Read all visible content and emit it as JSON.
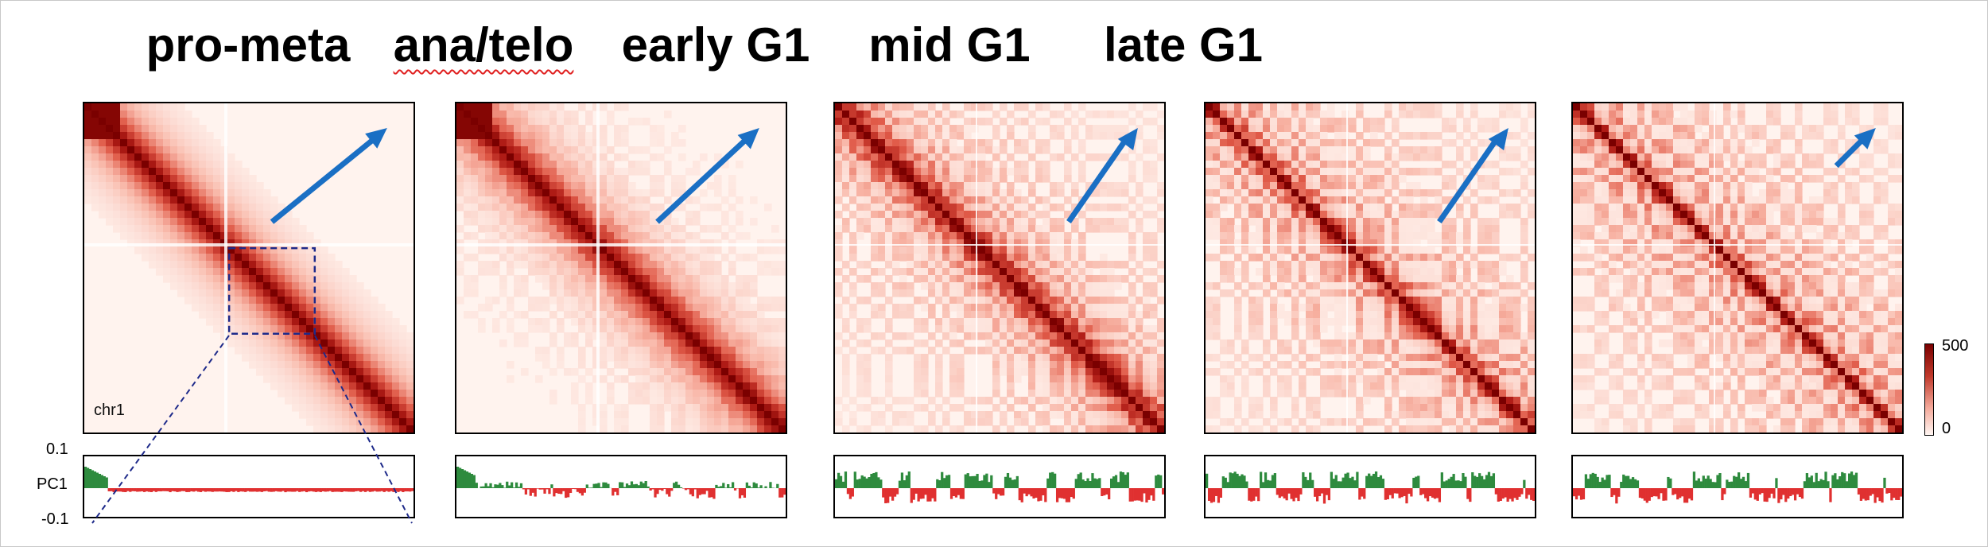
{
  "panels": [
    {
      "title": "pro-meta",
      "squiggle": false,
      "band": 0.09,
      "texture": 0.0,
      "dark": 1.0,
      "pc1": "pro"
    },
    {
      "title": "ana/telo",
      "squiggle": true,
      "band": 0.085,
      "texture": 0.25,
      "dark": 0.95,
      "pc1": "ana"
    },
    {
      "title": "early G1",
      "squiggle": false,
      "band": 0.055,
      "texture": 0.7,
      "dark": 0.85,
      "pc1": "g1"
    },
    {
      "title": "mid G1",
      "squiggle": false,
      "band": 0.03,
      "texture": 0.85,
      "dark": 0.8,
      "pc1": "g1"
    },
    {
      "title": "late G1",
      "squiggle": false,
      "band": 0.025,
      "texture": 0.9,
      "dark": 0.75,
      "pc1": "g1"
    }
  ],
  "chromosome_label": "chr1",
  "pc1_axis": {
    "label": "PC1",
    "top": "0.1",
    "bottom": "-0.1"
  },
  "colorbar": {
    "max": "500",
    "min": "0"
  },
  "colors": {
    "dark_red": "#7a0000",
    "mid_red": "#d9534f",
    "background": "#fff3ee",
    "arrow_blue": "#1a6fc4",
    "pc1_positive": "#2e8b3e",
    "pc1_negative": "#e03030",
    "zoom_box": "#1e2a8a"
  },
  "icons": {
    "arrow": "arrow-up-right-icon"
  }
}
